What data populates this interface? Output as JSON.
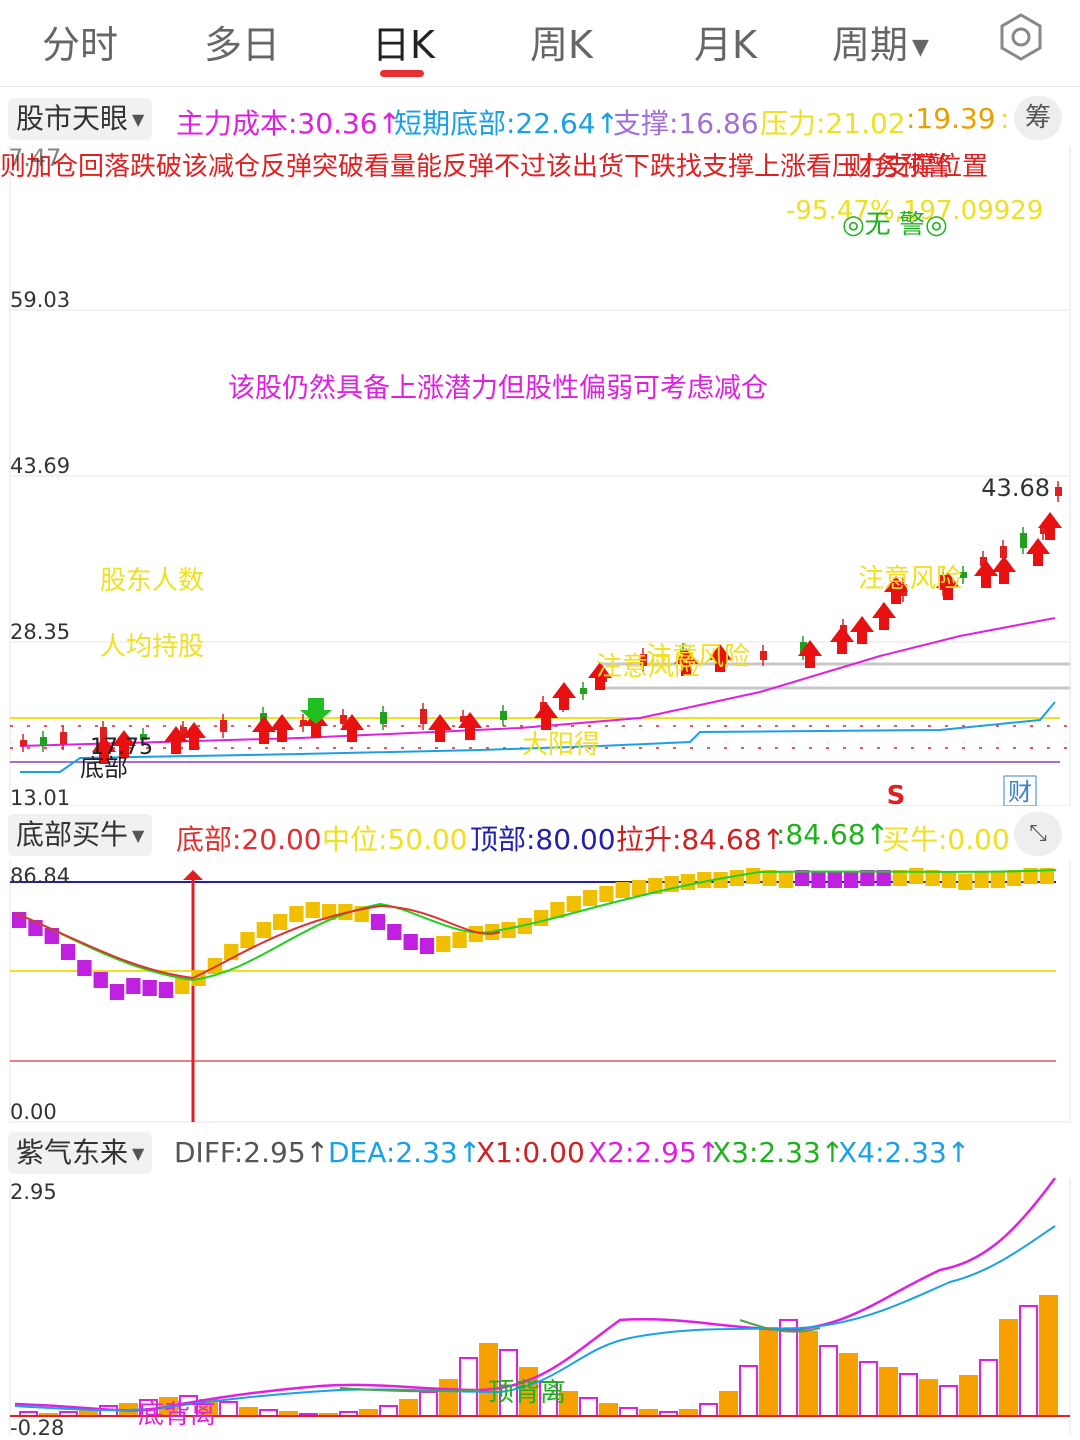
{
  "tabs": [
    {
      "label": "分时",
      "active": false
    },
    {
      "label": "多日",
      "active": false
    },
    {
      "label": "日K",
      "active": true
    },
    {
      "label": "周K",
      "active": false
    },
    {
      "label": "月K",
      "active": false
    },
    {
      "label": "周期",
      "active": false
    }
  ],
  "icons": {
    "settings": "hexagon-settings-icon",
    "dropdown": "caret-down-icon",
    "expand": "expand-arrows-icon"
  },
  "main_panel": {
    "selector": "股市天眼",
    "indicators": [
      {
        "label": "主力成本:30.36↑",
        "color": "#e020e0"
      },
      {
        "label": "短期底部:22.64↑",
        "color": "#1aa0e8"
      },
      {
        "label": "支撑:16.86",
        "color": "#a070d8"
      },
      {
        "label": "压力:21.02",
        "color": "#f0e020"
      },
      {
        "label": ":19.39",
        "color": "#e8a000"
      },
      {
        "label": ":",
        "color": "#f0e020"
      }
    ],
    "chou_button": "筹",
    "ticker": "则加仓回落跌破该减仓反弹突破看量能反弹不过该出货下跌找支撑上涨看压力支撑位置",
    "ticker_overlay_left": "7.47",
    "ticker_overlay_right": "财务预警",
    "warning_value": "-95.47%,197.09929",
    "warning_text": "◎无 警◎",
    "advice": "该股仍然具备上涨潜力但股性偏弱可考虑减仓",
    "y_labels": [
      "59.03",
      "43.69",
      "28.35",
      "13.01"
    ],
    "price_high": "43.68",
    "low_label": "17.75",
    "annotations": [
      {
        "text": "股东人数",
        "color": "#f0e020"
      },
      {
        "text": "人均持股",
        "color": "#f0e020"
      },
      {
        "text": "注意风险",
        "color": "#f0e020"
      },
      {
        "text": "注意风险",
        "color": "#f0e020"
      },
      {
        "text": "注意风险",
        "color": "#f0e020"
      },
      {
        "text": "大阳得",
        "color": "#f0e020"
      },
      {
        "text": "底部",
        "color": "#222222"
      }
    ],
    "sell_mark": "S",
    "cai_icon": "财"
  },
  "bottom_buy_panel": {
    "selector": "底部买牛",
    "indicators": [
      {
        "label": "底部:20.00",
        "color": "#e03030"
      },
      {
        "label": "中位:50.00",
        "color": "#f0e020"
      },
      {
        "label": "顶部:80.00",
        "color": "#2020b0"
      },
      {
        "label": "拉升:84.68↑",
        "color": "#d02020"
      },
      {
        "label": ":84.68↑",
        "color": "#20b020"
      },
      {
        "label": "买牛:0.00",
        "color": "#f0e020"
      }
    ],
    "y_labels": [
      "86.84",
      "0.00"
    ]
  },
  "macd_panel": {
    "selector": "紫气东来",
    "indicators": [
      {
        "label": "DIFF:2.95↑",
        "color": "#555555"
      },
      {
        "label": "DEA:2.33↑",
        "color": "#1aa0e8"
      },
      {
        "label": "X1:0.00",
        "color": "#d02020"
      },
      {
        "label": "X2:2.95↑",
        "color": "#e020e0"
      },
      {
        "label": "X3:2.33↑",
        "color": "#20b020"
      },
      {
        "label": "X4:2.33↑",
        "color": "#1aa0e8"
      }
    ],
    "y_labels": [
      "2.95",
      "-0.28"
    ],
    "annotations": [
      {
        "text": "底背离",
        "color": "#e020e0"
      },
      {
        "text": "顶背离",
        "color": "#20b020"
      }
    ]
  }
}
